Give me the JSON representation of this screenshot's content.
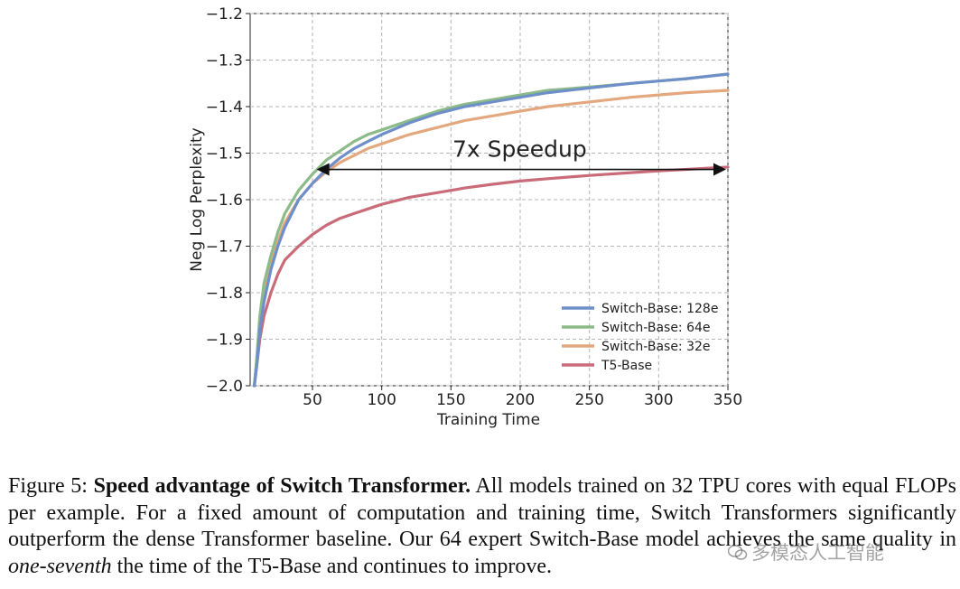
{
  "chart_data": {
    "type": "line",
    "xlabel": "Training Time",
    "ylabel": "Neg Log Perplexity",
    "xlim": [
      5,
      350
    ],
    "ylim": [
      -2.0,
      -1.2
    ],
    "xticks": [
      50,
      100,
      150,
      200,
      250,
      300,
      350
    ],
    "yticks": [
      -1.2,
      -1.3,
      -1.4,
      -1.5,
      -1.6,
      -1.7,
      -1.8,
      -1.9,
      -2.0
    ],
    "ytick_labels": [
      "−1.2",
      "−1.3",
      "−1.4",
      "−1.5",
      "−1.6",
      "−1.7",
      "−1.8",
      "−1.9",
      "−2.0"
    ],
    "grid": true,
    "legend_position": "lower-right",
    "series": [
      {
        "name": "Switch-Base: 128e",
        "color": "#6f8fc9",
        "x": [
          8,
          10,
          12,
          15,
          20,
          25,
          30,
          40,
          50,
          60,
          70,
          80,
          90,
          100,
          120,
          140,
          160,
          180,
          200,
          220,
          250,
          280,
          300,
          320,
          350
        ],
        "y": [
          -2.0,
          -1.95,
          -1.88,
          -1.82,
          -1.75,
          -1.7,
          -1.66,
          -1.6,
          -1.565,
          -1.535,
          -1.51,
          -1.49,
          -1.475,
          -1.46,
          -1.435,
          -1.415,
          -1.4,
          -1.39,
          -1.38,
          -1.37,
          -1.36,
          -1.35,
          -1.345,
          -1.34,
          -1.33
        ]
      },
      {
        "name": "Switch-Base: 64e",
        "color": "#8dbb88",
        "x": [
          8,
          10,
          12,
          15,
          20,
          25,
          30,
          40,
          50,
          60,
          70,
          80,
          90,
          100,
          120,
          140,
          160,
          180,
          200,
          220,
          250,
          280,
          300,
          320,
          350
        ],
        "y": [
          -2.0,
          -1.93,
          -1.85,
          -1.78,
          -1.72,
          -1.67,
          -1.63,
          -1.58,
          -1.545,
          -1.515,
          -1.495,
          -1.475,
          -1.46,
          -1.45,
          -1.43,
          -1.41,
          -1.395,
          -1.385,
          -1.375,
          -1.365,
          -1.358,
          -1.35,
          -1.345,
          -1.34,
          -1.33
        ]
      },
      {
        "name": "Switch-Base: 32e",
        "color": "#e3a87e",
        "x": [
          8,
          10,
          12,
          15,
          20,
          25,
          30,
          40,
          50,
          60,
          70,
          80,
          90,
          100,
          120,
          140,
          160,
          180,
          200,
          220,
          250,
          280,
          300,
          320,
          350
        ],
        "y": [
          -2.0,
          -1.94,
          -1.87,
          -1.8,
          -1.74,
          -1.69,
          -1.65,
          -1.6,
          -1.565,
          -1.54,
          -1.52,
          -1.505,
          -1.49,
          -1.48,
          -1.46,
          -1.445,
          -1.43,
          -1.42,
          -1.41,
          -1.4,
          -1.39,
          -1.38,
          -1.375,
          -1.37,
          -1.365
        ]
      },
      {
        "name": "T5-Base",
        "color": "#c96b78",
        "x": [
          8,
          10,
          12,
          15,
          20,
          25,
          30,
          40,
          50,
          60,
          70,
          80,
          90,
          100,
          120,
          140,
          160,
          180,
          200,
          220,
          250,
          280,
          300,
          320,
          350
        ],
        "y": [
          -2.0,
          -1.95,
          -1.9,
          -1.85,
          -1.8,
          -1.76,
          -1.73,
          -1.7,
          -1.675,
          -1.655,
          -1.64,
          -1.63,
          -1.62,
          -1.61,
          -1.595,
          -1.585,
          -1.575,
          -1.567,
          -1.56,
          -1.555,
          -1.548,
          -1.542,
          -1.538,
          -1.535,
          -1.53
        ]
      }
    ],
    "annotations": [
      {
        "text": "7x Speedup",
        "arrow_from": [
          350,
          -1.535
        ],
        "arrow_to": [
          53,
          -1.535
        ],
        "text_at": [
          180,
          -1.49
        ]
      }
    ]
  },
  "caption": {
    "label": "Figure 5:",
    "bold": "Speed advantage of Switch Transformer.",
    "text1": "All models trained on 32 TPU cores with equal FLOPs per example. For a fixed amount of computation and training time, Switch Transformers significantly outperform the dense Transformer baseline. Our 64 expert Switch-Base model achieves the same quality in",
    "italic": "one-seventh",
    "text2": "the time of the T5-Base and continues to improve."
  },
  "watermark": {
    "text": "多模态人工智能",
    "icon": "wechat-icon"
  }
}
